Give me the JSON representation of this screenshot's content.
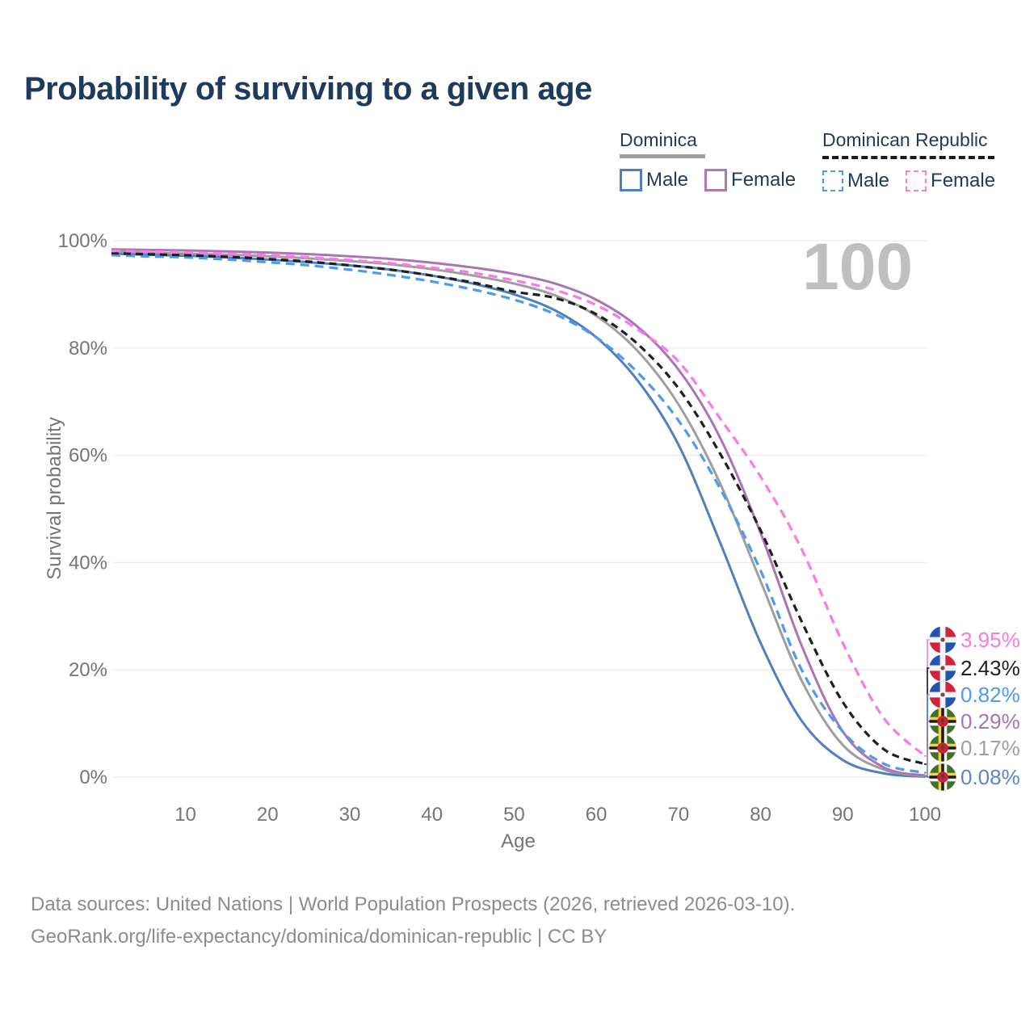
{
  "title": "Probability of surviving to a given age",
  "watermark": "100",
  "legend": {
    "groups": [
      {
        "label": "Dominica",
        "line_style": "solid",
        "swatch_color": "#9e9e9e",
        "items": [
          {
            "label": "Male",
            "color": "#4e80c0"
          },
          {
            "label": "Female",
            "color": "#b077b4"
          }
        ]
      },
      {
        "label": "Dominican Republic",
        "line_style": "dashed",
        "swatch_color": "#1a1a1a",
        "items": [
          {
            "label": "Male",
            "color": "#4d9af0"
          },
          {
            "label": "Female",
            "color": "#f97ae6"
          }
        ]
      }
    ]
  },
  "chart_data": {
    "type": "line",
    "title": "Probability of surviving to a given age",
    "xlabel": "Age",
    "ylabel": "Survival probability",
    "xlim": [
      1,
      100
    ],
    "ylim": [
      0,
      100
    ],
    "x_ticks": [
      10,
      20,
      30,
      40,
      50,
      60,
      70,
      80,
      90,
      100
    ],
    "y_tick_labels": [
      "0%",
      "20%",
      "40%",
      "60%",
      "80%",
      "100%"
    ],
    "grid": "horizontal",
    "annotation": "100",
    "ages": [
      1,
      5,
      10,
      15,
      20,
      25,
      30,
      35,
      40,
      45,
      50,
      55,
      60,
      65,
      70,
      75,
      80,
      85,
      90,
      95,
      100
    ],
    "series": [
      {
        "id": "dominica-male",
        "name": "Dominica Male",
        "country": "Dominica",
        "sex": "Male",
        "line": "solid",
        "color": "#4e80c0",
        "values": [
          97.6,
          97.4,
          97.2,
          96.9,
          96.5,
          96.0,
          95.4,
          94.6,
          93.5,
          92.0,
          90.0,
          87.0,
          82.0,
          74.0,
          62.0,
          44.0,
          25.0,
          10.5,
          3.2,
          0.7,
          0.08
        ]
      },
      {
        "id": "dominica-both",
        "name": "Dominica Both sexes",
        "country": "Dominica",
        "sex": "Both",
        "line": "solid",
        "color": "#9e9e9e",
        "values": [
          98.0,
          97.8,
          97.6,
          97.4,
          97.1,
          96.7,
          96.2,
          95.6,
          94.7,
          93.5,
          92.0,
          89.8,
          86.0,
          79.5,
          69.5,
          55.0,
          36.5,
          18.0,
          6.0,
          1.4,
          0.17
        ]
      },
      {
        "id": "dominica-female",
        "name": "Dominica Female",
        "country": "Dominica",
        "sex": "Female",
        "line": "solid",
        "color": "#ab74b4",
        "values": [
          98.4,
          98.3,
          98.2,
          98.0,
          97.8,
          97.5,
          97.1,
          96.6,
          95.9,
          95.0,
          93.8,
          92.0,
          89.0,
          84.0,
          76.0,
          63.5,
          45.5,
          24.5,
          8.5,
          1.8,
          0.29
        ]
      },
      {
        "id": "dr-male",
        "name": "Dominican Republic Male",
        "country": "Dominican Republic",
        "sex": "Male",
        "line": "dashed",
        "color": "#4d9af0",
        "values": [
          97.3,
          97.1,
          96.9,
          96.5,
          96.0,
          95.4,
          94.6,
          93.6,
          92.4,
          90.9,
          89.0,
          86.3,
          82.0,
          75.5,
          66.5,
          54.0,
          38.5,
          20.0,
          8.5,
          2.5,
          0.82
        ]
      },
      {
        "id": "dr-both",
        "name": "Dominican Republic Both sexes",
        "country": "Dominican Republic",
        "sex": "Both",
        "line": "dashed",
        "color": "#1f1f1f",
        "values": [
          97.7,
          97.5,
          97.3,
          97.0,
          96.6,
          96.1,
          95.4,
          94.6,
          93.5,
          92.2,
          90.5,
          89.3,
          86.3,
          80.8,
          72.5,
          60.5,
          46.0,
          29.0,
          14.0,
          5.2,
          2.43
        ]
      },
      {
        "id": "dr-female",
        "name": "Dominican Republic Female",
        "country": "Dominican Republic",
        "sex": "Female",
        "line": "dashed",
        "color": "#f97ae6",
        "values": [
          98.1,
          98.0,
          97.8,
          97.6,
          97.3,
          96.9,
          96.4,
          95.8,
          95.0,
          94.0,
          92.6,
          90.8,
          88.0,
          83.5,
          77.5,
          67.0,
          56.0,
          42.5,
          25.0,
          11.0,
          3.95
        ]
      }
    ],
    "end_labels": [
      {
        "series": "dr-female",
        "text": "3.95%",
        "color": "#f97ae6",
        "flag": "dominican-republic",
        "value": 3.95
      },
      {
        "series": "dr-both",
        "text": "2.43%",
        "color": "#1f1f1f",
        "flag": "dominican-republic",
        "value": 2.43
      },
      {
        "series": "dr-male",
        "text": "0.82%",
        "color": "#4d9af0",
        "flag": "dominican-republic",
        "value": 0.82
      },
      {
        "series": "dominica-female",
        "text": "0.29%",
        "color": "#a873ae",
        "flag": "dominica",
        "value": 0.29
      },
      {
        "series": "dominica-both",
        "text": "0.17%",
        "color": "#9e9e9e",
        "flag": "dominica",
        "value": 0.17
      },
      {
        "series": "dominica-male",
        "text": "0.08%",
        "color": "#5b85c8",
        "flag": "dominica",
        "value": 0.08
      }
    ]
  },
  "footer": {
    "line1": "Data sources: United Nations | World Population Prospects (2026, retrieved 2026-03-10).",
    "line2": "GeoRank.org/life-expectancy/dominica/dominican-republic | CC BY"
  }
}
